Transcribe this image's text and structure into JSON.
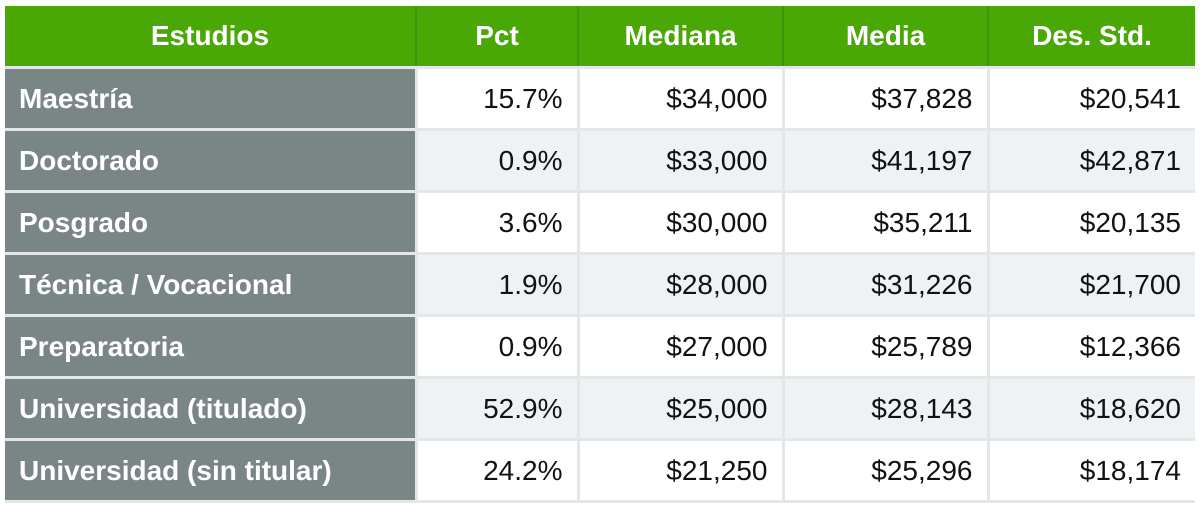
{
  "chart_data": {
    "type": "table",
    "columns": [
      "Estudios",
      "Pct",
      "Mediana",
      "Media",
      "Des. Std."
    ],
    "rows": [
      {
        "label": "Maestría",
        "values": [
          "15.7%",
          "$34,000",
          "$37,828",
          "$20,541"
        ]
      },
      {
        "label": "Doctorado",
        "values": [
          "0.9%",
          "$33,000",
          "$41,197",
          "$42,871"
        ]
      },
      {
        "label": "Posgrado",
        "values": [
          "3.6%",
          "$30,000",
          "$35,211",
          "$20,135"
        ]
      },
      {
        "label": "Técnica / Vocacional",
        "values": [
          "1.9%",
          "$28,000",
          "$31,226",
          "$21,700"
        ]
      },
      {
        "label": "Preparatoria",
        "values": [
          "0.9%",
          "$27,000",
          "$25,789",
          "$12,366"
        ]
      },
      {
        "label": "Universidad (titulado)",
        "values": [
          "52.9%",
          "$25,000",
          "$28,143",
          "$18,620"
        ]
      },
      {
        "label": "Universidad (sin titular)",
        "values": [
          "24.2%",
          "$21,250",
          "$25,296",
          "$18,174"
        ]
      }
    ]
  },
  "colors": {
    "header_bg": "#4aa806",
    "row_header_bg": "#7a8685",
    "row_even_bg": "#eef2f4",
    "grid": "#e4e7e8"
  }
}
